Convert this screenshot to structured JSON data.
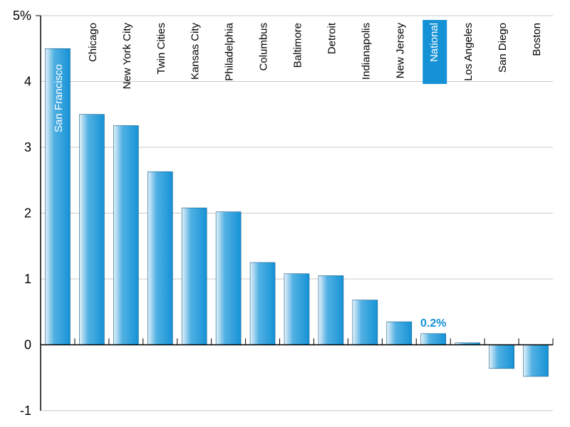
{
  "chart_data": {
    "type": "bar",
    "title": "",
    "xlabel": "",
    "ylabel": "",
    "ylim": [
      -1,
      5
    ],
    "yticks": [
      {
        "value": 5,
        "label": "5%"
      },
      {
        "value": 4,
        "label": "4"
      },
      {
        "value": 3,
        "label": "3"
      },
      {
        "value": 2,
        "label": "2"
      },
      {
        "value": 1,
        "label": "1"
      },
      {
        "value": 0,
        "label": "0"
      },
      {
        "value": -1,
        "label": "-1"
      }
    ],
    "grid": true,
    "categories": [
      "San Francisco",
      "Chicago",
      "New York City",
      "Twin Cities",
      "Kansas City",
      "Philadelphia",
      "Columbus",
      "Baltimore",
      "Detroit",
      "Indianapolis",
      "New Jersey",
      "National",
      "Los Angeles",
      "San Diego",
      "Boston"
    ],
    "values": [
      4.5,
      3.5,
      3.33,
      2.63,
      2.08,
      2.02,
      1.25,
      1.08,
      1.05,
      0.68,
      0.35,
      0.17,
      0.03,
      -0.36,
      -0.48
    ],
    "highlight": {
      "category": "National",
      "label": "0.2%"
    },
    "colors": {
      "bar": "#1592d6",
      "bar_light": "#e6f2fa",
      "highlight_label_bg": "#1592d6",
      "data_label": "#1592d6",
      "axis": "#000000",
      "grid": "#c8c8c8"
    }
  }
}
